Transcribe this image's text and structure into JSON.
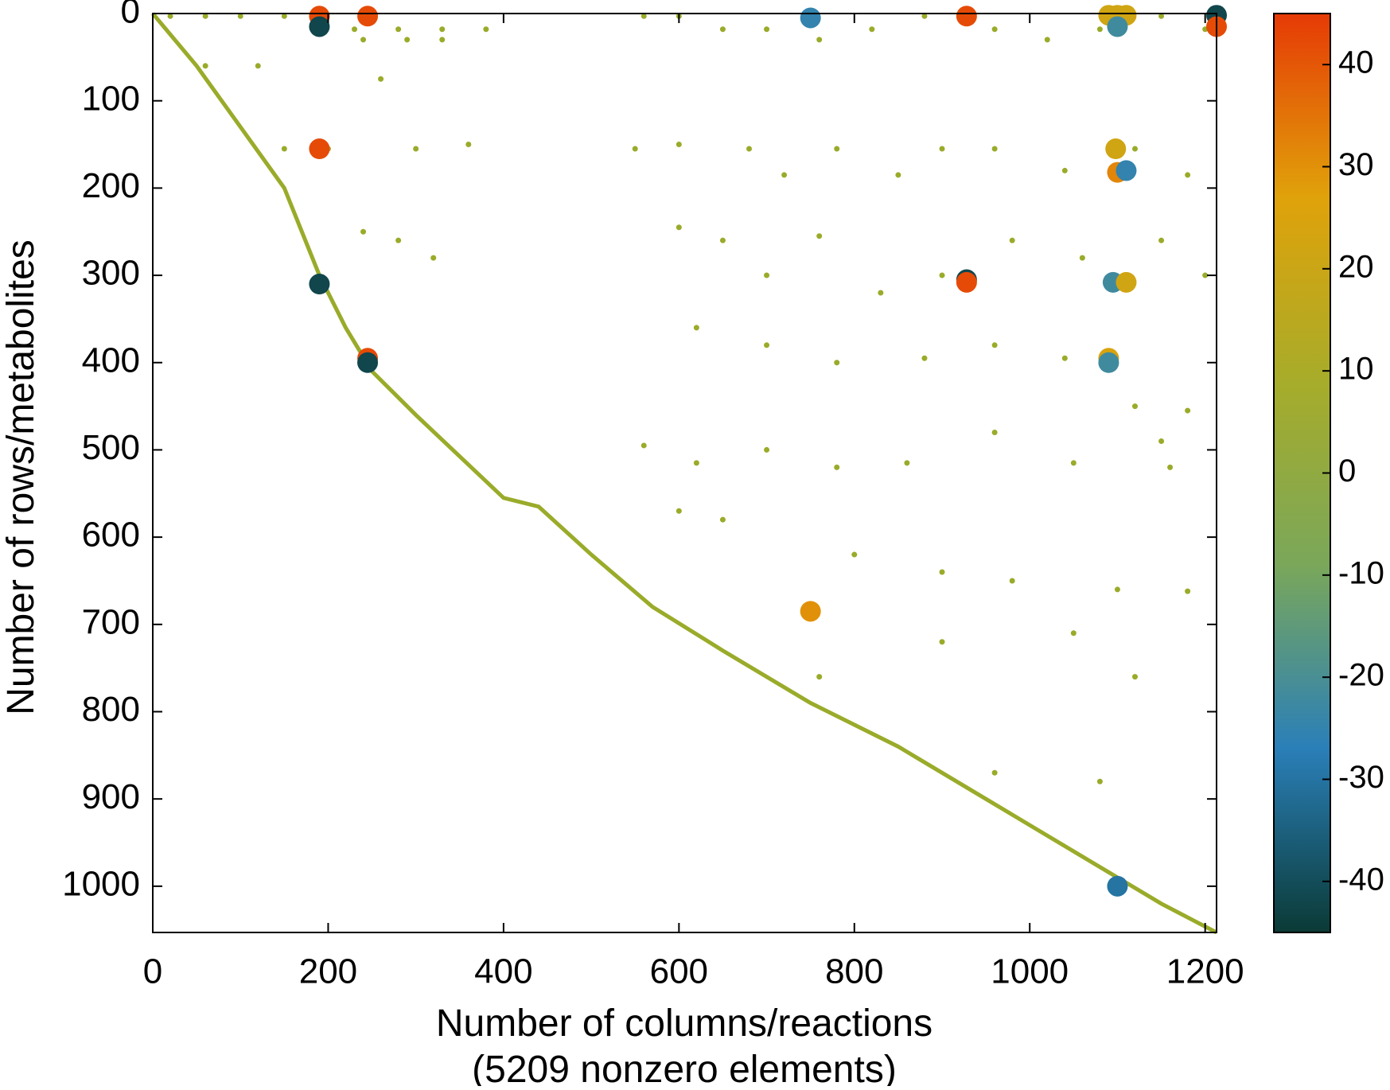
{
  "chart_data": {
    "type": "scatter",
    "xlabel": "Number of columns/reactions",
    "xlabel_note": "(5209 nonzero elements)",
    "ylabel": "Number of rows/metabolites",
    "xlim": [
      0,
      1213
    ],
    "ylim": [
      0,
      1053
    ],
    "y_inverted": true,
    "xticks": [
      0,
      200,
      400,
      600,
      800,
      1000,
      1200
    ],
    "yticks": [
      0,
      100,
      200,
      300,
      400,
      500,
      600,
      700,
      800,
      900,
      1000
    ],
    "clim": [
      -45,
      45
    ],
    "cticks": [
      -40,
      -30,
      -20,
      -10,
      0,
      10,
      20,
      30,
      40
    ],
    "colormap": [
      "#0b3a36",
      "#2a7fb8",
      "#7aa75a",
      "#a7ac2a",
      "#e0a20a",
      "#e63a06"
    ],
    "diagonal": {
      "color": "#9aab2a",
      "x": [
        0,
        50,
        100,
        150,
        190,
        220,
        250,
        300,
        400,
        440,
        500,
        570,
        650,
        750,
        850,
        950,
        1000,
        1100,
        1150,
        1213
      ],
      "y": [
        0,
        60,
        130,
        200,
        300,
        360,
        410,
        460,
        555,
        565,
        620,
        680,
        730,
        790,
        840,
        900,
        930,
        990,
        1020,
        1053
      ]
    },
    "points": {
      "color": "#9aab2a",
      "x": [
        20,
        60,
        100,
        150,
        230,
        280,
        330,
        380,
        560,
        600,
        650,
        700,
        760,
        820,
        880,
        960,
        1020,
        1080,
        1150,
        1200,
        240,
        290,
        330,
        60,
        120,
        260,
        150,
        200,
        300,
        360,
        550,
        600,
        680,
        720,
        780,
        850,
        900,
        960,
        1040,
        1120,
        1180,
        240,
        280,
        320,
        600,
        650,
        700,
        760,
        830,
        900,
        980,
        1060,
        1150,
        1200,
        620,
        700,
        780,
        880,
        960,
        1040,
        1120,
        1180,
        560,
        620,
        700,
        780,
        860,
        960,
        1050,
        1150,
        600,
        650,
        800,
        900,
        980,
        1100,
        1180,
        1160,
        900,
        1050,
        1120,
        760,
        960,
        1080
      ],
      "y": [
        3,
        3,
        3,
        3,
        18,
        18,
        18,
        18,
        3,
        3,
        18,
        18,
        30,
        18,
        3,
        18,
        30,
        18,
        3,
        18,
        30,
        30,
        30,
        60,
        60,
        75,
        155,
        155,
        155,
        150,
        155,
        150,
        155,
        185,
        155,
        185,
        155,
        155,
        180,
        155,
        185,
        250,
        260,
        280,
        245,
        260,
        300,
        255,
        320,
        300,
        260,
        280,
        260,
        300,
        360,
        380,
        400,
        395,
        380,
        395,
        450,
        455,
        495,
        515,
        500,
        520,
        515,
        480,
        515,
        490,
        570,
        580,
        620,
        640,
        650,
        660,
        662,
        520,
        720,
        710,
        760,
        760,
        870,
        880
      ]
    },
    "markers": {
      "x": [
        190,
        190,
        245,
        750,
        928,
        1090,
        1100,
        1110,
        1100,
        1213,
        1213,
        190,
        1098,
        1100,
        1110,
        190,
        928,
        928,
        1095,
        1110,
        245,
        245,
        1090,
        1090,
        750,
        1100
      ],
      "y": [
        3,
        15,
        3,
        5,
        3,
        2,
        2,
        2,
        15,
        2,
        15,
        155,
        155,
        182,
        180,
        310,
        305,
        308,
        308,
        308,
        395,
        400,
        395,
        400,
        685,
        1000
      ],
      "c": [
        42,
        -42,
        42,
        -25,
        42,
        22,
        22,
        22,
        -22,
        -42,
        42,
        42,
        22,
        32,
        -25,
        -42,
        -42,
        42,
        -22,
        22,
        42,
        -42,
        25,
        -22,
        30,
        -30
      ]
    }
  }
}
